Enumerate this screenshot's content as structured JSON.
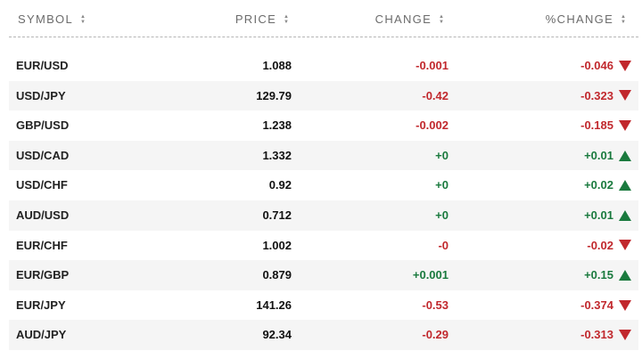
{
  "colors": {
    "negative": "#c1282d",
    "positive": "#1a7a3e"
  },
  "header": {
    "symbol": "SYMBOL",
    "price": "PRICE",
    "change": "CHANGE",
    "pct_change": "%CHANGE",
    "sort_icon": "sort-arrows-icon"
  },
  "rows": [
    {
      "symbol": "EUR/USD",
      "price": "1.088",
      "change": "-0.001",
      "pct_change": "-0.046",
      "direction": "down"
    },
    {
      "symbol": "USD/JPY",
      "price": "129.79",
      "change": "-0.42",
      "pct_change": "-0.323",
      "direction": "down"
    },
    {
      "symbol": "GBP/USD",
      "price": "1.238",
      "change": "-0.002",
      "pct_change": "-0.185",
      "direction": "down"
    },
    {
      "symbol": "USD/CAD",
      "price": "1.332",
      "change": "+0",
      "pct_change": "+0.01",
      "direction": "up"
    },
    {
      "symbol": "USD/CHF",
      "price": "0.92",
      "change": "+0",
      "pct_change": "+0.02",
      "direction": "up"
    },
    {
      "symbol": "AUD/USD",
      "price": "0.712",
      "change": "+0",
      "pct_change": "+0.01",
      "direction": "up"
    },
    {
      "symbol": "EUR/CHF",
      "price": "1.002",
      "change": "-0",
      "pct_change": "-0.02",
      "direction": "down"
    },
    {
      "symbol": "EUR/GBP",
      "price": "0.879",
      "change": "+0.001",
      "pct_change": "+0.15",
      "direction": "up"
    },
    {
      "symbol": "EUR/JPY",
      "price": "141.26",
      "change": "-0.53",
      "pct_change": "-0.374",
      "direction": "down"
    },
    {
      "symbol": "AUD/JPY",
      "price": "92.34",
      "change": "-0.29",
      "pct_change": "-0.313",
      "direction": "down"
    }
  ]
}
